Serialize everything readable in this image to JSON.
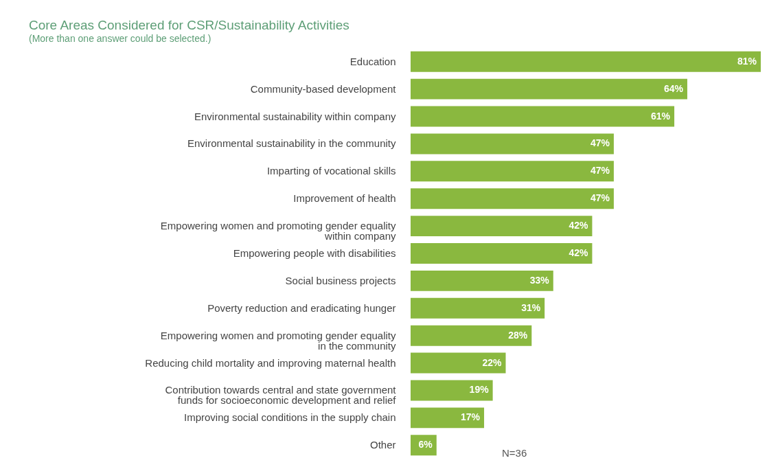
{
  "chart_data": {
    "type": "bar",
    "orientation": "horizontal",
    "title": "Core Areas Considered for CSR/Sustainability Activities",
    "subtitle": "(More than one answer could be selected.)",
    "categories": [
      "Education",
      "Community-based development",
      "Environmental sustainability within company",
      "Environmental sustainability in the community",
      "Imparting of vocational skills",
      "Improvement of health",
      "Empowering women and promoting gender equality\nwithin company",
      "Empowering people with disabilities",
      "Social business projects",
      "Poverty reduction and eradicating hunger",
      "Empowering women and promoting gender equality\nin the community",
      "Reducing child mortality and improving maternal health",
      "Contribution towards central and state government\nfunds for socioeconomic development and relief",
      "Improving social conditions in the supply chain",
      "Other"
    ],
    "values": [
      81,
      64,
      61,
      47,
      47,
      47,
      42,
      42,
      33,
      31,
      28,
      22,
      19,
      17,
      6
    ],
    "value_labels": [
      "81%",
      "64%",
      "61%",
      "47%",
      "47%",
      "47%",
      "42%",
      "42%",
      "33%",
      "31%",
      "28%",
      "22%",
      "19%",
      "17%",
      "6%"
    ],
    "color": "#8ab83f",
    "annotations": [
      "N=36"
    ]
  }
}
